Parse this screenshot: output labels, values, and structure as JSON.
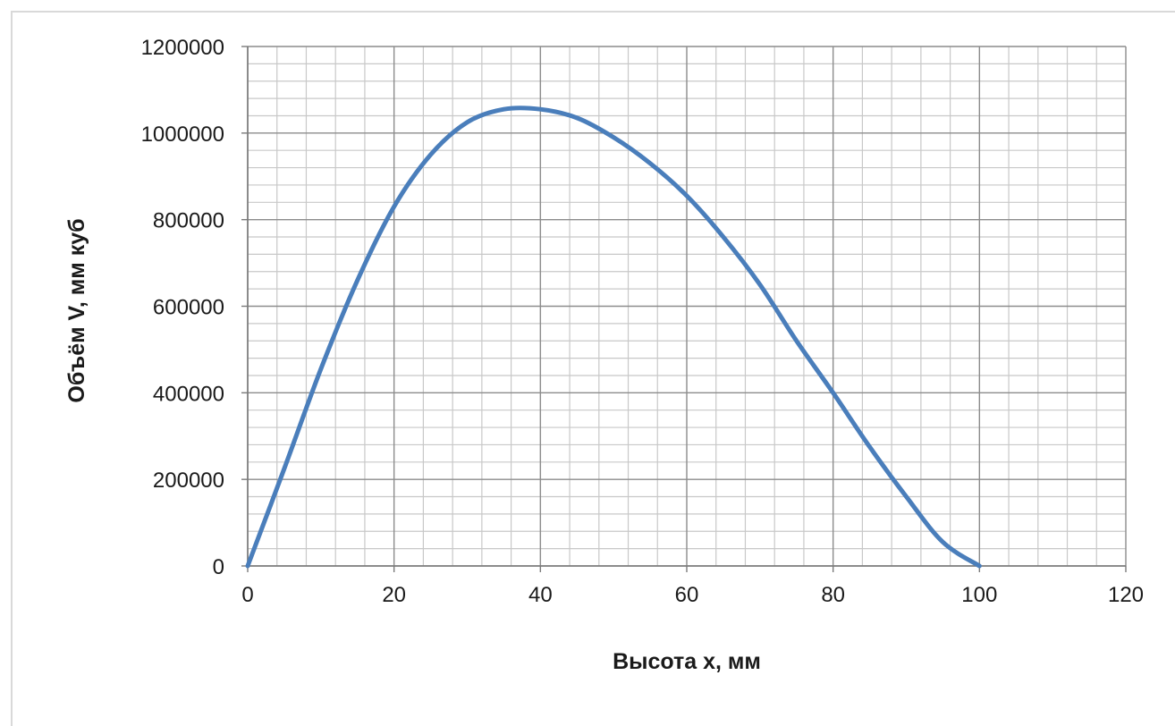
{
  "chart_data": {
    "type": "line",
    "title": "",
    "xlabel": "Высота x, мм",
    "ylabel": "Объём V, мм куб",
    "xlim": [
      0,
      120
    ],
    "ylim": [
      0,
      1200000
    ],
    "x_ticks": [
      "0",
      "20",
      "40",
      "60",
      "80",
      "100",
      "120"
    ],
    "y_ticks": [
      "0",
      "200000",
      "400000",
      "600000",
      "800000",
      "1000000",
      "1200000"
    ],
    "grid": true,
    "legend": "none",
    "series": [
      {
        "color": "#4a7ebb",
        "x": [
          0,
          5,
          10,
          15,
          20,
          25,
          30,
          35,
          40,
          45,
          50,
          55,
          60,
          65,
          70,
          75,
          80,
          85,
          90,
          95,
          100
        ],
        "y": [
          0,
          225000,
          455000,
          660000,
          830000,
          950000,
          1025000,
          1055000,
          1055000,
          1035000,
          990000,
          930000,
          855000,
          760000,
          650000,
          520000,
          400000,
          275000,
          160000,
          55000,
          0
        ]
      }
    ]
  }
}
